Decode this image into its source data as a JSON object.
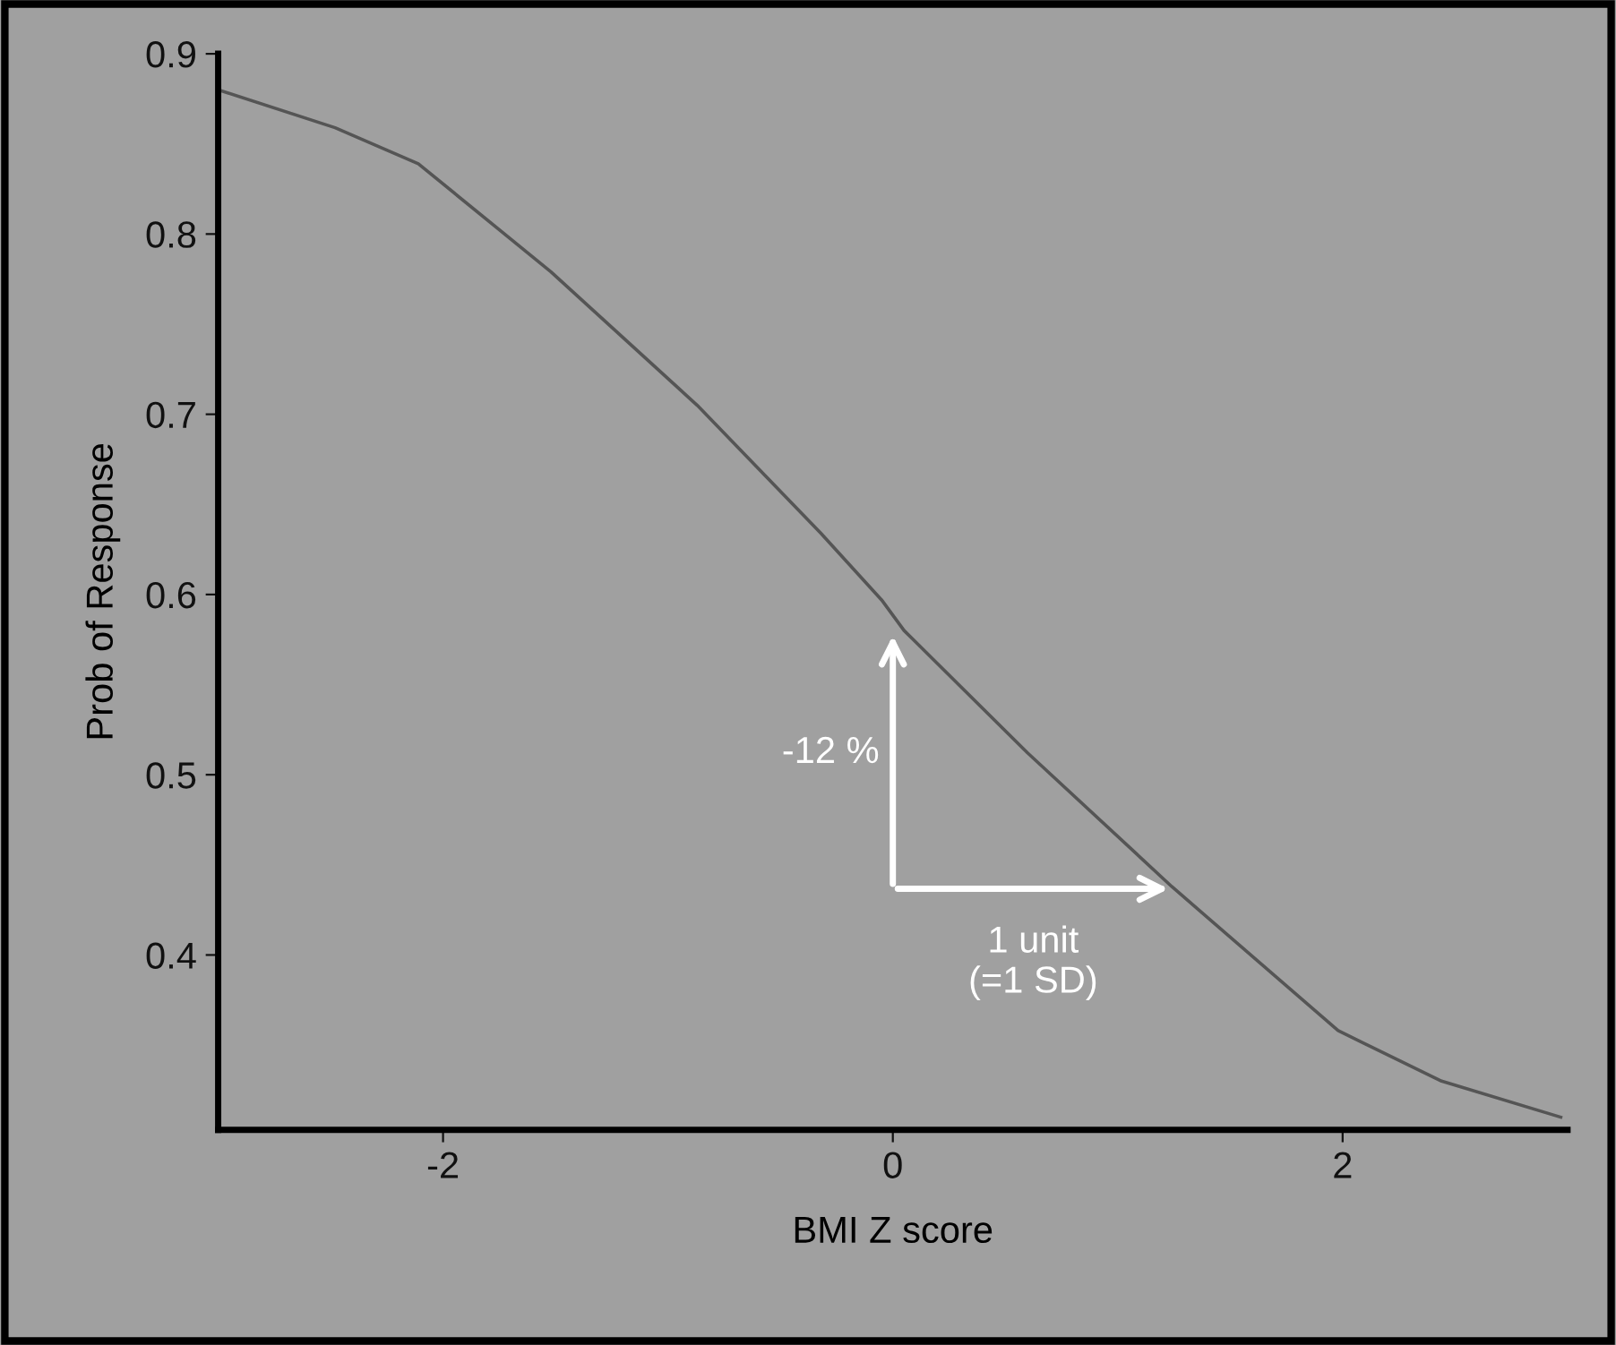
{
  "chart_data": {
    "type": "line",
    "xlabel": "BMI Z score",
    "ylabel": "Prob of Response",
    "xlim": [
      -3,
      3
    ],
    "xticks": [
      -2,
      0,
      2
    ],
    "ylim": [
      0.303,
      0.9
    ],
    "yticks": [
      0.4,
      0.5,
      0.6,
      0.7,
      0.8,
      0.9
    ],
    "grid": false,
    "legend": false,
    "marker": "none",
    "line_style": "solid",
    "series": [
      {
        "color": "#555555",
        "x": [
          -3,
          -2.48,
          -2.11,
          -1.52,
          -0.87,
          -0.32,
          -0.05,
          0.05,
          0.6,
          1.24,
          1.98,
          2.44,
          2.97
        ],
        "values": [
          0.88,
          0.859,
          0.839,
          0.779,
          0.705,
          0.634,
          0.597,
          0.58,
          0.512,
          0.438,
          0.358,
          0.33,
          0.31
        ]
      }
    ],
    "annotations": [
      "-12 %",
      "1 unit\n(=1 SD)"
    ]
  }
}
